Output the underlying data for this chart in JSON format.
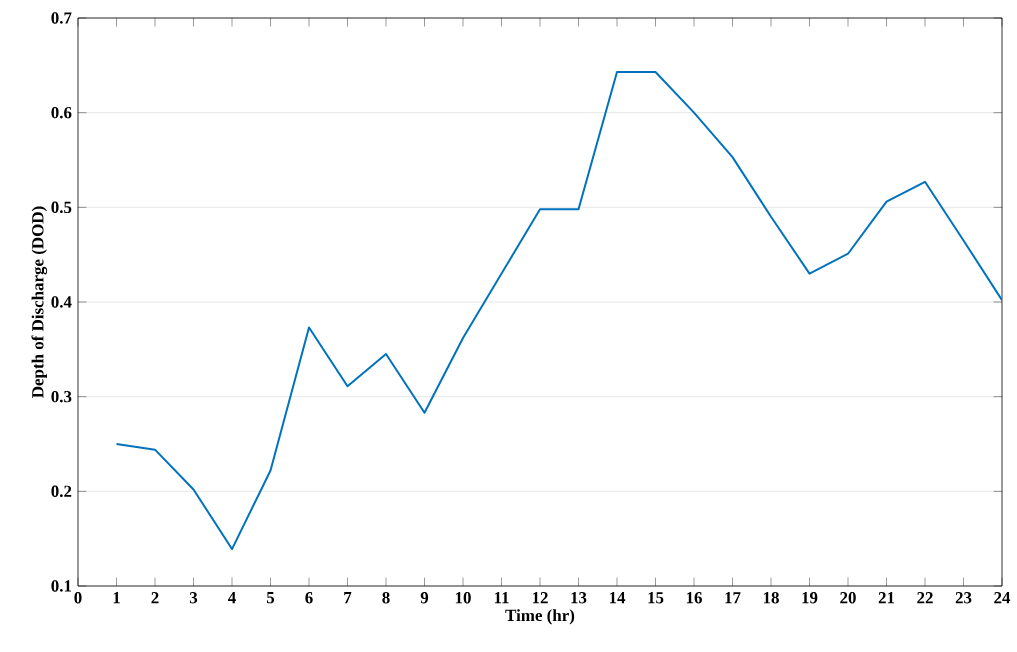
{
  "chart_data": {
    "type": "line",
    "xlabel": "Time (hr)",
    "ylabel": "Depth of Discharge (DOD)",
    "x": [
      1,
      2,
      3,
      4,
      5,
      6,
      7,
      8,
      9,
      10,
      11,
      12,
      13,
      14,
      15,
      16,
      17,
      18,
      19,
      20,
      21,
      22,
      23,
      24
    ],
    "series": [
      {
        "color": "#0072bd",
        "values": [
          0.25,
          0.244,
          0.202,
          0.139,
          0.222,
          0.373,
          0.311,
          0.345,
          0.283,
          0.362,
          0.43,
          0.498,
          0.498,
          0.643,
          0.643,
          0.6,
          0.553,
          0.49,
          0.43,
          0.451,
          0.506,
          0.527,
          0.465,
          0.402
        ]
      }
    ],
    "xlim": [
      0,
      24
    ],
    "xticks": [
      0,
      1,
      2,
      3,
      4,
      5,
      6,
      7,
      8,
      9,
      10,
      11,
      12,
      13,
      14,
      15,
      16,
      17,
      18,
      19,
      20,
      21,
      22,
      23,
      24
    ],
    "ylim": [
      0.1,
      0.7
    ],
    "yticks": [
      0.1,
      0.2,
      0.3,
      0.4,
      0.5,
      0.6,
      0.7
    ],
    "grid": "y",
    "line_style": "solid",
    "marker": "none"
  }
}
